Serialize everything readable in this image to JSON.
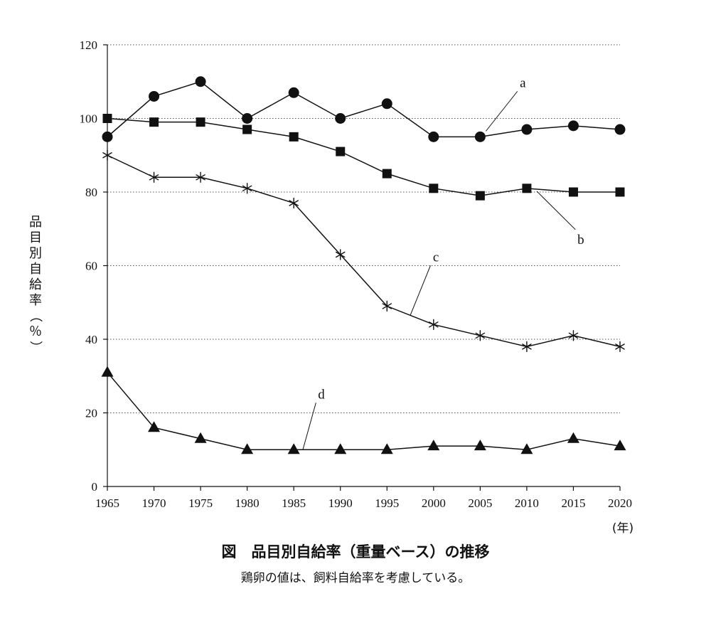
{
  "chart_data": {
    "type": "line",
    "title": "図　品目別自給率（重量ベース）の推移",
    "subtitle": "鶏卵の値は、飼料自給率を考慮している。",
    "ylabel": "品目別自給率（％）",
    "xunit": "(年)",
    "x": [
      1965,
      1970,
      1975,
      1980,
      1985,
      1990,
      1995,
      2000,
      2005,
      2010,
      2015,
      2020
    ],
    "ylim": [
      0,
      120
    ],
    "yticks": [
      0,
      20,
      40,
      60,
      80,
      100,
      120
    ],
    "grid": "horizontal-dotted",
    "series": [
      {
        "name": "a",
        "marker": "circle",
        "values": [
          95,
          106,
          110,
          100,
          107,
          100,
          104,
          95,
          95,
          97,
          98,
          97
        ]
      },
      {
        "name": "b",
        "marker": "square",
        "values": [
          100,
          99,
          99,
          97,
          95,
          91,
          85,
          81,
          79,
          81,
          80,
          80
        ]
      },
      {
        "name": "c",
        "marker": "asterisk",
        "values": [
          90,
          84,
          84,
          81,
          77,
          63,
          49,
          44,
          41,
          38,
          41,
          38
        ]
      },
      {
        "name": "d",
        "marker": "triangle",
        "values": [
          31,
          16,
          13,
          10,
          10,
          10,
          10,
          11,
          11,
          10,
          13,
          11
        ]
      }
    ]
  }
}
